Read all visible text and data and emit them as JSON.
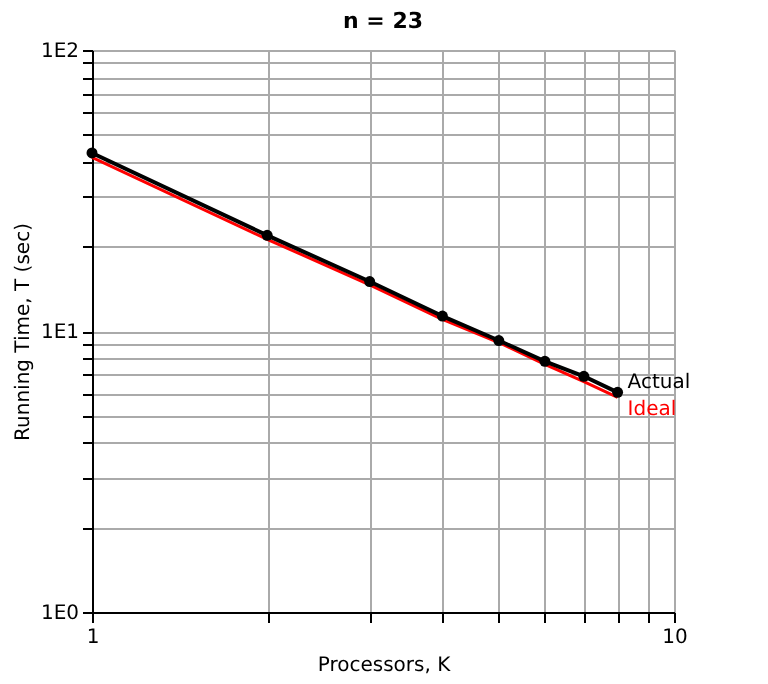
{
  "chart_data": {
    "type": "line",
    "title": "n = 23",
    "xlabel": "Processors, K",
    "ylabel": "Running Time, T (sec)",
    "x": [
      1,
      2,
      3,
      4,
      5,
      6,
      7,
      8
    ],
    "series": [
      {
        "name": "Ideal",
        "color": "#ff0000",
        "values": [
          41.5,
          21.2,
          14.6,
          11.0,
          9.1,
          7.6,
          6.6,
          5.8
        ],
        "marker": "none"
      },
      {
        "name": "Actual",
        "color": "#000000",
        "values": [
          43,
          21.9,
          15.0,
          11.3,
          9.25,
          7.8,
          6.9,
          6.05
        ],
        "marker": "circle"
      }
    ],
    "log": "xy",
    "xlim": [
      1,
      10
    ],
    "ylim": [
      1,
      100
    ],
    "xticks": [
      1,
      {
        "value": 2,
        "label": null
      },
      {
        "value": 3,
        "label": null
      },
      {
        "value": 4,
        "label": null
      },
      {
        "value": 5,
        "label": null
      },
      {
        "value": 6,
        "label": null
      },
      {
        "value": 7,
        "label": null
      },
      {
        "value": 8,
        "label": null
      },
      {
        "value": 9,
        "label": null
      },
      10
    ],
    "yticks": [
      {
        "value": 1,
        "label": "1E0"
      },
      {
        "value": 2,
        "label": null
      },
      {
        "value": 3,
        "label": null
      },
      {
        "value": 4,
        "label": null
      },
      {
        "value": 5,
        "label": null
      },
      {
        "value": 6,
        "label": null
      },
      {
        "value": 7,
        "label": null
      },
      {
        "value": 8,
        "label": null
      },
      {
        "value": 9,
        "label": null
      },
      {
        "value": 10,
        "label": "1E1"
      },
      {
        "value": 20,
        "label": null
      },
      {
        "value": 30,
        "label": null
      },
      {
        "value": 40,
        "label": null
      },
      {
        "value": 50,
        "label": null
      },
      {
        "value": 60,
        "label": null
      },
      {
        "value": 70,
        "label": null
      },
      {
        "value": 80,
        "label": null
      },
      {
        "value": 90,
        "label": null
      },
      {
        "value": 100,
        "label": "1E2"
      }
    ],
    "grid": true,
    "line_style": "solid"
  }
}
